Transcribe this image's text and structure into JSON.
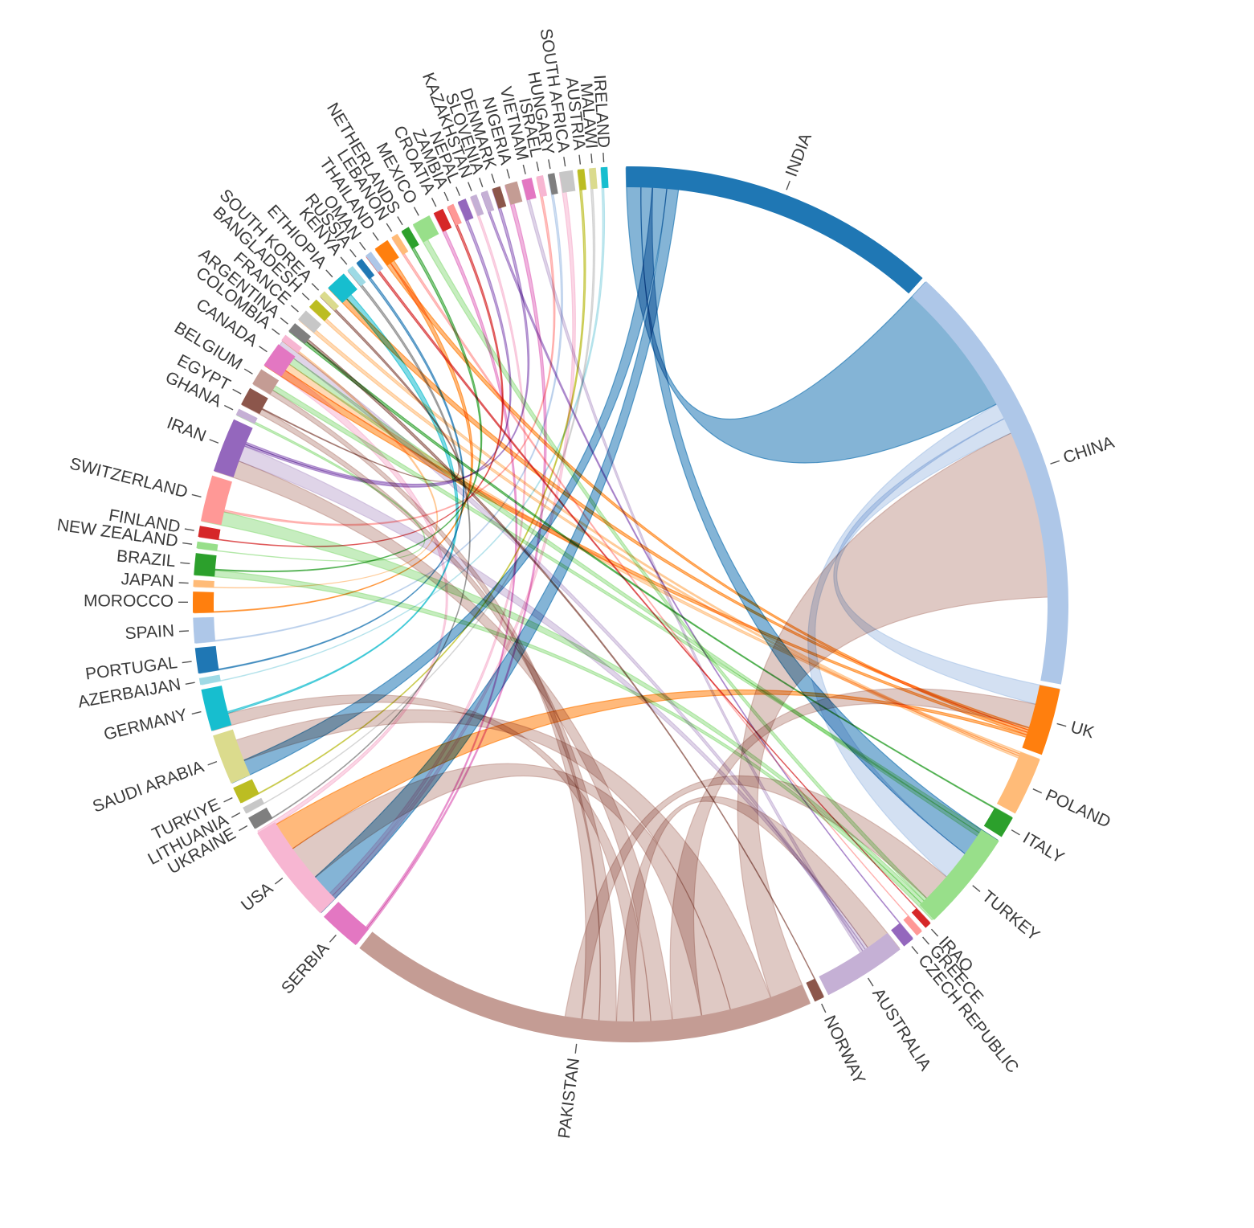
{
  "chart_data": {
    "type": "chord",
    "title": "",
    "nodes": [
      {
        "name": "INDIA",
        "color": "#1f77b4",
        "weight": 38
      },
      {
        "name": "CHINA",
        "color": "#aec7e8",
        "weight": 52
      },
      {
        "name": "UK",
        "color": "#ff7f0e",
        "weight": 8
      },
      {
        "name": "POLAND",
        "color": "#ffbb78",
        "weight": 7
      },
      {
        "name": "ITALY",
        "color": "#2ca02c",
        "weight": 2.6
      },
      {
        "name": "TURKEY",
        "color": "#98df8a",
        "weight": 12
      },
      {
        "name": "IRAQ",
        "color": "#d62728",
        "weight": 0.8
      },
      {
        "name": "GREECE",
        "color": "#ff9896",
        "weight": 0.8
      },
      {
        "name": "CZECH REPUBLIC",
        "color": "#9467bd",
        "weight": 1.4
      },
      {
        "name": "AUSTRALIA",
        "color": "#c5b0d5",
        "weight": 10
      },
      {
        "name": "NORWAY",
        "color": "#8c564b",
        "weight": 1.2
      },
      {
        "name": "PAKISTAN",
        "color": "#c49c94",
        "weight": 56
      },
      {
        "name": "SERBIA",
        "color": "#e377c2",
        "weight": 5
      },
      {
        "name": "USA",
        "color": "#f7b6d2",
        "weight": 12
      },
      {
        "name": "UKRAINE",
        "color": "#7f7f7f",
        "weight": 1.5
      },
      {
        "name": "LITHUANIA",
        "color": "#c7c7c7",
        "weight": 0.8
      },
      {
        "name": "TURKIYE",
        "color": "#bcbd22",
        "weight": 2
      },
      {
        "name": "SAUDI ARABIA",
        "color": "#dbdb8d",
        "weight": 6
      },
      {
        "name": "GERMANY",
        "color": "#17becf",
        "weight": 5
      },
      {
        "name": "AZERBAIJAN",
        "color": "#9edae5",
        "weight": 0.8
      },
      {
        "name": "PORTUGAL",
        "color": "#1f77b4",
        "weight": 3
      },
      {
        "name": "SPAIN",
        "color": "#aec7e8",
        "weight": 3
      },
      {
        "name": "MOROCCO",
        "color": "#ff7f0e",
        "weight": 2.5
      },
      {
        "name": "JAPAN",
        "color": "#ffbb78",
        "weight": 0.8
      },
      {
        "name": "BRAZIL",
        "color": "#2ca02c",
        "weight": 2.6
      },
      {
        "name": "NEW ZEALAND",
        "color": "#98df8a",
        "weight": 0.8
      },
      {
        "name": "FINLAND",
        "color": "#d62728",
        "weight": 1.3
      },
      {
        "name": "SWITZERLAND",
        "color": "#ff9896",
        "weight": 5.5
      },
      {
        "name": "IRAN",
        "color": "#9467bd",
        "weight": 6.5
      },
      {
        "name": "GHANA",
        "color": "#c5b0d5",
        "weight": 0.8
      },
      {
        "name": "EGYPT",
        "color": "#8c564b",
        "weight": 2.2
      },
      {
        "name": "BELGIUM",
        "color": "#c49c94",
        "weight": 2
      },
      {
        "name": "CANADA",
        "color": "#e377c2",
        "weight": 3
      },
      {
        "name": "COLOMBIA",
        "color": "#f7b6d2",
        "weight": 0.8
      },
      {
        "name": "ARGENTINA",
        "color": "#7f7f7f",
        "weight": 1.2
      },
      {
        "name": "FRANCE",
        "color": "#c7c7c7",
        "weight": 1.4
      },
      {
        "name": "BANGLADESH",
        "color": "#bcbd22",
        "weight": 1.2
      },
      {
        "name": "SOUTH KOREA",
        "color": "#dbdb8d",
        "weight": 0.8
      },
      {
        "name": "ETHIOPIA",
        "color": "#17becf",
        "weight": 2.5
      },
      {
        "name": "KENYA",
        "color": "#9edae5",
        "weight": 0.8
      },
      {
        "name": "RUSSIA",
        "color": "#1f77b4",
        "weight": 0.8
      },
      {
        "name": "OMAN",
        "color": "#aec7e8",
        "weight": 0.8
      },
      {
        "name": "THAILAND",
        "color": "#ff7f0e",
        "weight": 1.8
      },
      {
        "name": "LEBANON",
        "color": "#ffbb78",
        "weight": 0.8
      },
      {
        "name": "NETHERLANDS",
        "color": "#2ca02c",
        "weight": 1
      },
      {
        "name": "MEXICO",
        "color": "#98df8a",
        "weight": 2.2
      },
      {
        "name": "CROATIA",
        "color": "#d62728",
        "weight": 1.2
      },
      {
        "name": "ZAMBIA",
        "color": "#ff9896",
        "weight": 0.8
      },
      {
        "name": "NEPAL",
        "color": "#9467bd",
        "weight": 1
      },
      {
        "name": "KAZAKHSTAN",
        "color": "#c5b0d5",
        "weight": 0.8
      },
      {
        "name": "SLOVENIA",
        "color": "#c5b0d5",
        "weight": 0.8
      },
      {
        "name": "DENMARK",
        "color": "#8c564b",
        "weight": 1
      },
      {
        "name": "NIGERIA",
        "color": "#c49c94",
        "weight": 1.5
      },
      {
        "name": "VIETNAM",
        "color": "#e377c2",
        "weight": 1.2
      },
      {
        "name": "ISRAEL",
        "color": "#f7b6d2",
        "weight": 0.8
      },
      {
        "name": "HUNGARY",
        "color": "#7f7f7f",
        "weight": 0.8
      },
      {
        "name": "SOUTH AFRICA",
        "color": "#c7c7c7",
        "weight": 1.6
      },
      {
        "name": "AUSTRIA",
        "color": "#bcbd22",
        "weight": 0.8
      },
      {
        "name": "MALAWI",
        "color": "#dbdb8d",
        "weight": 0.8
      },
      {
        "name": "IRELAND",
        "color": "#17becf",
        "weight": 0.8
      }
    ],
    "links": [
      {
        "source": "INDIA",
        "target": "CHINA",
        "value": 1.5
      },
      {
        "source": "INDIA",
        "target": "TURKEY",
        "value": 1
      },
      {
        "source": "INDIA",
        "target": "SAUDI ARABIA",
        "value": 1.5
      },
      {
        "source": "INDIA",
        "target": "USA",
        "value": 1
      },
      {
        "source": "CHINA",
        "target": "TURKEY",
        "value": 1
      },
      {
        "source": "CHINA",
        "target": "UK",
        "value": 1
      },
      {
        "source": "PAKISTAN",
        "target": "CHINA",
        "value": 3
      },
      {
        "source": "PAKISTAN",
        "target": "SAUDI ARABIA",
        "value": 4
      },
      {
        "source": "PAKISTAN",
        "target": "USA",
        "value": 2.5
      },
      {
        "source": "PAKISTAN",
        "target": "UK",
        "value": 2.5
      },
      {
        "source": "PAKISTAN",
        "target": "IRAN",
        "value": 1.5
      },
      {
        "source": "PAKISTAN",
        "target": "GERMANY",
        "value": 1
      },
      {
        "source": "PAKISTAN",
        "target": "AUSTRALIA",
        "value": 1
      },
      {
        "source": "PAKISTAN",
        "target": "EGYPT",
        "value": 1
      },
      {
        "source": "PAKISTAN",
        "target": "BELGIUM",
        "value": 1
      },
      {
        "source": "PAKISTAN",
        "target": "TURKEY",
        "value": 1
      },
      {
        "source": "UK",
        "target": "ETHIOPIA",
        "value": 1
      },
      {
        "source": "UK",
        "target": "THAILAND",
        "value": 1
      },
      {
        "source": "UK",
        "target": "CANADA",
        "value": 1
      },
      {
        "source": "UK",
        "target": "USA",
        "value": 1
      },
      {
        "source": "POLAND",
        "target": "CANADA",
        "value": 1
      },
      {
        "source": "POLAND",
        "target": "BANGLADESH",
        "value": 1
      },
      {
        "source": "POLAND",
        "target": "FRANCE",
        "value": 1
      },
      {
        "source": "ITALY",
        "target": "ARGENTINA",
        "value": 1
      },
      {
        "source": "TURKEY",
        "target": "MEXICO",
        "value": 1
      },
      {
        "source": "TURKEY",
        "target": "SWITZERLAND",
        "value": 1
      },
      {
        "source": "TURKEY",
        "target": "BRAZIL",
        "value": 1
      },
      {
        "source": "TURKEY",
        "target": "BELGIUM",
        "value": 1
      },
      {
        "source": "TURKEY",
        "target": "CANADA",
        "value": 1
      },
      {
        "source": "AUSTRALIA",
        "target": "IRAN",
        "value": 1
      },
      {
        "source": "AUSTRALIA",
        "target": "CANADA",
        "value": 1
      },
      {
        "source": "AUSTRALIA",
        "target": "VIETNAM",
        "value": 1
      },
      {
        "source": "SERBIA",
        "target": "NIGERIA",
        "value": 1
      },
      {
        "source": "SERBIA",
        "target": "CROATIA",
        "value": 1
      },
      {
        "source": "USA",
        "target": "CANADA",
        "value": 1
      },
      {
        "source": "USA",
        "target": "SOUTH AFRICA",
        "value": 1
      },
      {
        "source": "USA",
        "target": "KAZAKHSTAN",
        "value": 1
      },
      {
        "source": "GERMANY",
        "target": "ETHIOPIA",
        "value": 1
      },
      {
        "source": "MOROCCO",
        "target": "THAILAND",
        "value": 1
      },
      {
        "source": "PORTUGAL",
        "target": "RUSSIA",
        "value": 1
      },
      {
        "source": "SPAIN",
        "target": "HUNGARY",
        "value": 1
      },
      {
        "source": "SWITZERLAND",
        "target": "ISRAEL",
        "value": 1
      },
      {
        "source": "IRAN",
        "target": "NEPAL",
        "value": 1
      },
      {
        "source": "IRAN",
        "target": "DENMARK",
        "value": 1
      },
      {
        "source": "BRAZIL",
        "target": "NETHERLANDS",
        "value": 1
      },
      {
        "source": "FINLAND",
        "target": "ZAMBIA",
        "value": 1
      },
      {
        "source": "EGYPT",
        "target": "SOUTH KOREA",
        "value": 1
      },
      {
        "source": "NORWAY",
        "target": "ARGENTINA",
        "value": 1
      },
      {
        "source": "CZECH REPUBLIC",
        "target": "SLOVENIA",
        "value": 1
      },
      {
        "source": "GREECE",
        "target": "LEBANON",
        "value": 1
      },
      {
        "source": "IRAQ",
        "target": "OMAN",
        "value": 1
      },
      {
        "source": "UKRAINE",
        "target": "KENYA",
        "value": 1
      },
      {
        "source": "LITHUANIA",
        "target": "MALAWI",
        "value": 1
      },
      {
        "source": "TURKIYE",
        "target": "AUSTRIA",
        "value": 1
      },
      {
        "source": "AZERBAIJAN",
        "target": "IRELAND",
        "value": 1
      },
      {
        "source": "JAPAN",
        "target": "COLOMBIA",
        "value": 1
      },
      {
        "source": "NEW ZEALAND",
        "target": "GHANA",
        "value": 1
      }
    ]
  }
}
